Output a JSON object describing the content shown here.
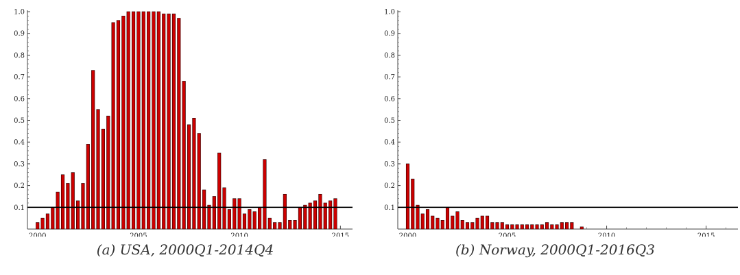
{
  "chart_data": [
    {
      "type": "bar",
      "caption": "(a) USA, 2000Q1-2014Q4",
      "x_start": 2000.0,
      "x_step": 0.25,
      "xlim": [
        1999.5,
        2015.6
      ],
      "ylim": [
        0,
        1.0
      ],
      "x_ticks": [
        2000,
        2005,
        2010,
        2015
      ],
      "y_ticks": [
        0.1,
        0.2,
        0.3,
        0.4,
        0.5,
        0.6,
        0.7,
        0.8,
        0.9,
        1.0
      ],
      "y_tick_labels": [
        "0.1",
        "0.2",
        "0.3",
        "0.4",
        "0.5",
        "0.6",
        "0.7",
        "0.8",
        "0.9",
        "1.0"
      ],
      "threshold": 0.1,
      "bar_color": "#cc0000",
      "values": [
        0.03,
        0.05,
        0.07,
        0.1,
        0.17,
        0.25,
        0.21,
        0.26,
        0.13,
        0.21,
        0.39,
        0.73,
        0.55,
        0.46,
        0.52,
        0.95,
        0.96,
        0.98,
        1.0,
        1.0,
        1.0,
        1.0,
        1.0,
        1.0,
        1.0,
        0.99,
        0.99,
        0.99,
        0.97,
        0.68,
        0.48,
        0.51,
        0.44,
        0.18,
        0.11,
        0.15,
        0.35,
        0.19,
        0.09,
        0.14,
        0.14,
        0.07,
        0.09,
        0.08,
        0.1,
        0.32,
        0.05,
        0.03,
        0.03,
        0.16,
        0.04,
        0.04,
        0.1,
        0.11,
        0.12,
        0.13,
        0.16,
        0.12,
        0.13,
        0.14
      ]
    },
    {
      "type": "bar",
      "caption": "(b) Norway, 2000Q1-2016Q3",
      "x_start": 2000.0,
      "x_step": 0.25,
      "xlim": [
        1999.5,
        2016.6
      ],
      "ylim": [
        0,
        1.0
      ],
      "x_ticks": [
        2000,
        2005,
        2010,
        2015
      ],
      "y_ticks": [
        0.1,
        0.2,
        0.3,
        0.4,
        0.5,
        0.6,
        0.7,
        0.8,
        0.9,
        1.0
      ],
      "y_tick_labels": [
        "0.1",
        "0.2",
        "0.3",
        "0.4",
        "0.5",
        "0.6",
        "0.7",
        "0.8",
        "0.9",
        "1.0"
      ],
      "threshold": 0.1,
      "bar_color": "#cc0000",
      "values": [
        0.3,
        0.23,
        0.11,
        0.07,
        0.09,
        0.06,
        0.05,
        0.04,
        0.1,
        0.06,
        0.08,
        0.04,
        0.03,
        0.03,
        0.05,
        0.06,
        0.06,
        0.03,
        0.03,
        0.03,
        0.02,
        0.02,
        0.02,
        0.02,
        0.02,
        0.02,
        0.02,
        0.02,
        0.03,
        0.02,
        0.02,
        0.03,
        0.03,
        0.03,
        0.0,
        0.01,
        0.0,
        0.0,
        0.0,
        0.0,
        0.0,
        0.0,
        0.0,
        0.0,
        0.0,
        0.0,
        0.0,
        0.0,
        0.0,
        0.0,
        0.0,
        0.0,
        0.0,
        0.0,
        0.0,
        0.0,
        0.0,
        0.0,
        0.0,
        0.0,
        0.0,
        0.0,
        0.0,
        0.0,
        0.0,
        0.0,
        0.0
      ]
    }
  ]
}
